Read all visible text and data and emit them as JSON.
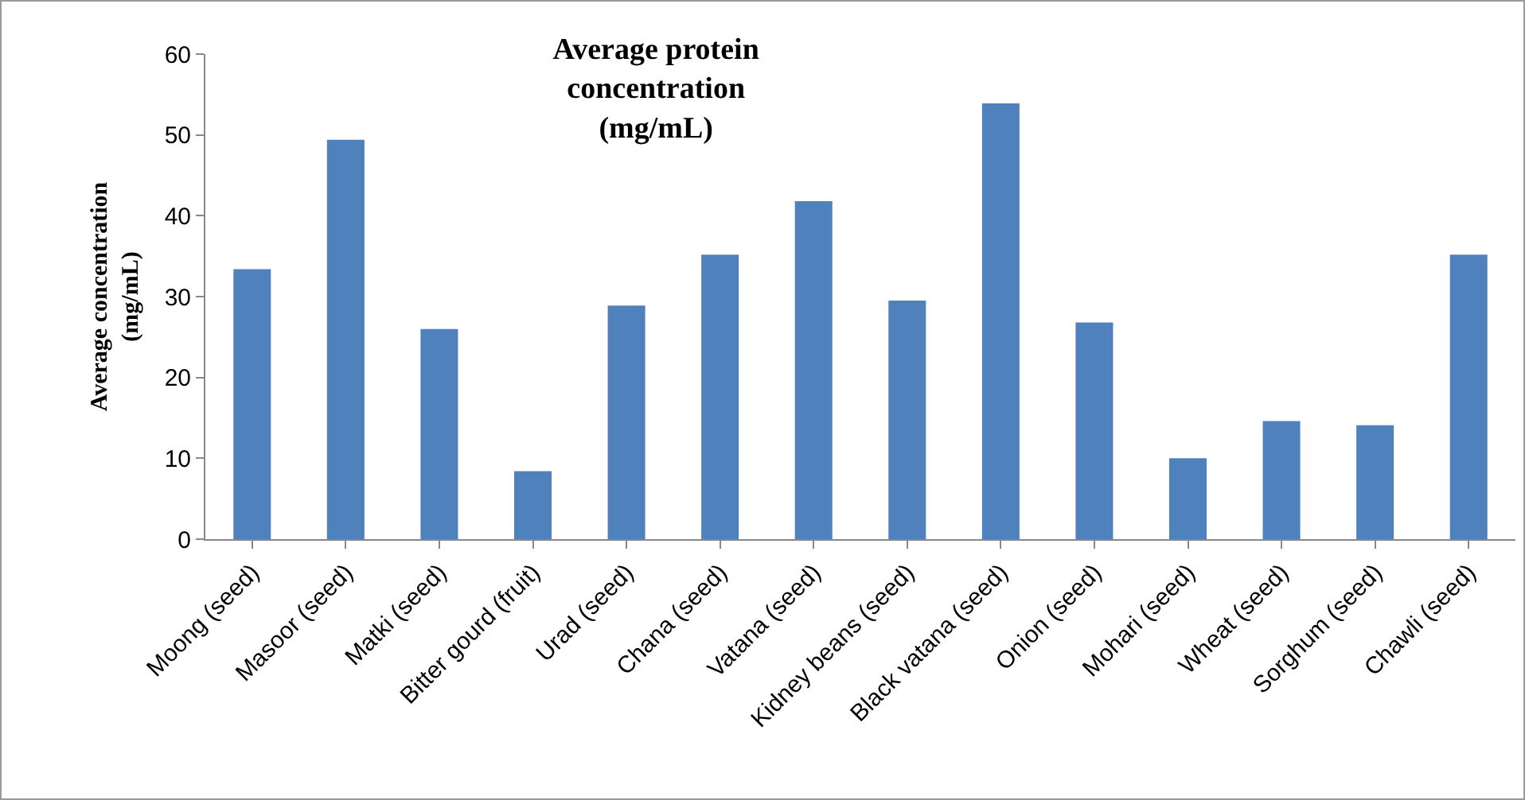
{
  "chart_data": {
    "type": "bar",
    "title": "Average protein concentration (mg/mL)",
    "ylabel": "Average concentration (mg/mL)",
    "categories": [
      "Moong (seed)",
      "Masoor (seed)",
      "Matki (seed)",
      "Bitter gourd (fruit)",
      "Urad (seed)",
      "Chana (seed)",
      "Vatana (seed)",
      "Kidney beans (seed)",
      "Black vatana (seed)",
      "Onion (seed)",
      "Mohari (seed)",
      "Wheat (seed)",
      "Sorghum (seed)",
      "Chawli (seed)"
    ],
    "values": [
      33.4,
      49.4,
      26.0,
      8.4,
      28.9,
      35.2,
      41.8,
      29.5,
      53.9,
      26.8,
      10.0,
      14.6,
      14.1,
      35.2
    ],
    "color": "#4f81bd",
    "ylim": [
      0,
      60
    ],
    "yticks": [
      0,
      10,
      20,
      30,
      40,
      50,
      60
    ],
    "grid": false
  }
}
